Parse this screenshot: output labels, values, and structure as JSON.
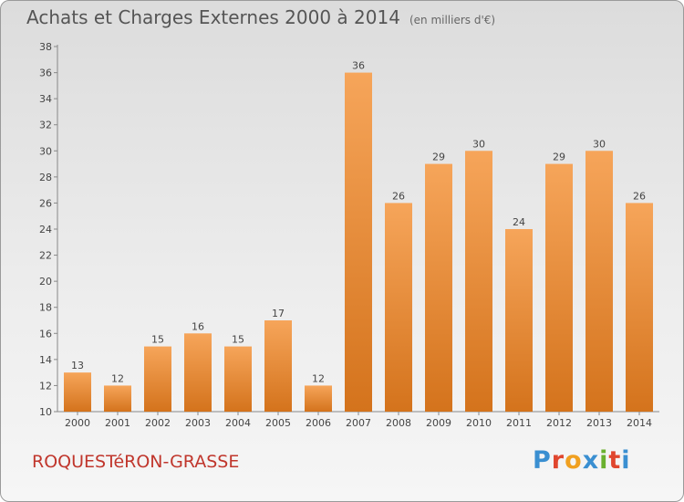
{
  "header": {
    "title": "Achats et Charges Externes 2000 à 2014",
    "unit": "(en milliers d'€)"
  },
  "footer": {
    "location": "ROQUESTéRON-GRASSE",
    "logo_letters": [
      "P",
      "r",
      "o",
      "x",
      "i",
      "t",
      "i"
    ]
  },
  "colors": {
    "bar_light": "#f6a55a",
    "bar_dark": "#d4731c",
    "location_text": "#c0362c",
    "logo": [
      "#3a8fd1",
      "#e0462e",
      "#f0a020",
      "#3a8fd1",
      "#6ab02e",
      "#e0462e",
      "#3a8fd1"
    ]
  },
  "chart_data": {
    "type": "bar",
    "title": "Achats et Charges Externes 2000 à 2014",
    "subtitle": "(en milliers d'€)",
    "categories": [
      "2000",
      "2001",
      "2002",
      "2003",
      "2004",
      "2005",
      "2006",
      "2007",
      "2008",
      "2009",
      "2010",
      "2011",
      "2012",
      "2013",
      "2014"
    ],
    "values": [
      13,
      12,
      15,
      16,
      15,
      17,
      12,
      36,
      26,
      29,
      30,
      24,
      29,
      30,
      26
    ],
    "ylim": [
      10,
      38
    ],
    "yticks": [
      10,
      12,
      14,
      16,
      18,
      20,
      22,
      24,
      26,
      28,
      30,
      32,
      34,
      36,
      38
    ],
    "grid": false,
    "legend": "none"
  }
}
